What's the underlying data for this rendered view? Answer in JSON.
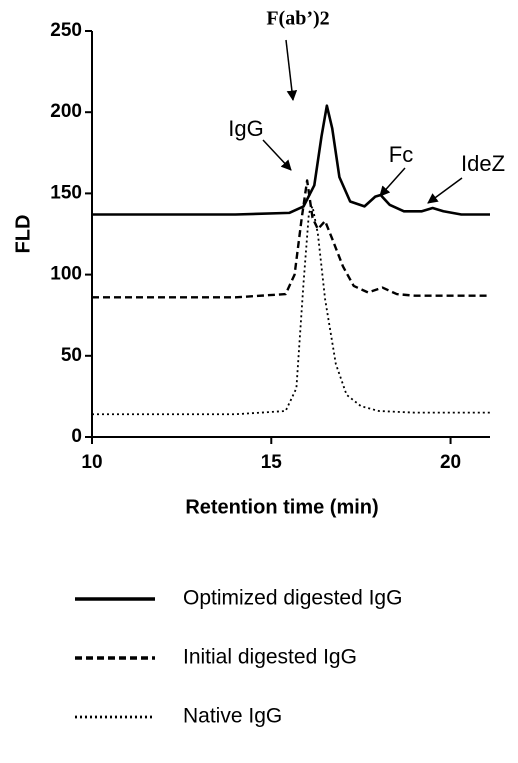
{
  "chart_data": {
    "type": "line",
    "x_label": "Retention time (min)",
    "y_label": "FLD",
    "xlim": [
      10,
      21.1
    ],
    "ylim": [
      0,
      250
    ],
    "xticks": [
      10,
      15,
      20
    ],
    "yticks": [
      0,
      50,
      100,
      150,
      200,
      250
    ],
    "annotations": [
      "F(ab’)2",
      "IgG",
      "Fc",
      "IdeZ"
    ],
    "series": [
      {
        "name": "Optimized digested IgG",
        "color": "#000000",
        "style": "solid",
        "x": [
          10,
          12,
          14,
          15.5,
          15.9,
          16.2,
          16.4,
          16.55,
          16.7,
          16.9,
          17.2,
          17.6,
          17.9,
          18.05,
          18.3,
          18.7,
          19.2,
          19.5,
          19.8,
          20.3,
          21.1
        ],
        "values": [
          137,
          137,
          137,
          138,
          142,
          155,
          185,
          204,
          190,
          160,
          145,
          142,
          148,
          149,
          143,
          139,
          139,
          141,
          139,
          137,
          137
        ]
      },
      {
        "name": "Initial digested IgG",
        "color": "#000000",
        "style": "dashed",
        "x": [
          10,
          12,
          14,
          15.4,
          15.65,
          15.85,
          16.0,
          16.15,
          16.3,
          16.5,
          16.7,
          17.0,
          17.3,
          17.7,
          18.1,
          18.5,
          19,
          21.1
        ],
        "values": [
          86,
          86,
          86,
          88,
          100,
          135,
          158,
          135,
          128,
          133,
          122,
          105,
          93,
          89,
          92,
          88,
          87,
          87
        ]
      },
      {
        "name": "Native IgG",
        "color": "#000000",
        "style": "dotted",
        "x": [
          10,
          12,
          14,
          15.4,
          15.7,
          15.9,
          16.05,
          16.15,
          16.3,
          16.5,
          16.8,
          17.1,
          17.5,
          18,
          19,
          21.1
        ],
        "values": [
          14,
          14,
          14,
          16,
          30,
          95,
          138,
          142,
          125,
          85,
          45,
          26,
          19,
          16,
          15,
          15
        ]
      }
    ]
  }
}
